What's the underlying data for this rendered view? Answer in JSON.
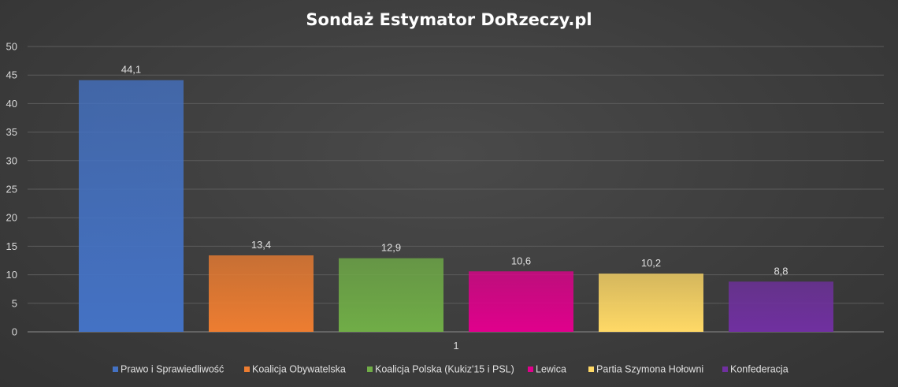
{
  "chart_data": {
    "type": "bar",
    "title": "Sondaż Estymator DoRzeczy.pl",
    "xlabel": "",
    "ylabel": "",
    "categories": [
      "1"
    ],
    "ylim": [
      0,
      50
    ],
    "yticks": [
      0,
      5,
      10,
      15,
      20,
      25,
      30,
      35,
      40,
      45,
      50
    ],
    "grid": true,
    "legend_position": "bottom",
    "series": [
      {
        "name": "Prawo i Sprawiedliwość",
        "values": [
          44.1
        ],
        "label": "44,1",
        "color": "#4472c4"
      },
      {
        "name": "Koalicja Obywatelska",
        "values": [
          13.4
        ],
        "label": "13,4",
        "color": "#ed7d31"
      },
      {
        "name": "Koalicja Polska (Kukiz'15 i PSL)",
        "values": [
          12.9
        ],
        "label": "12,9",
        "color": "#70ad47"
      },
      {
        "name": "Lewica",
        "values": [
          10.6
        ],
        "label": "10,6",
        "color": "#e0008c"
      },
      {
        "name": "Partia Szymona Hołowni",
        "values": [
          10.2
        ],
        "label": "10,2",
        "color": "#ffd966"
      },
      {
        "name": "Konfederacja",
        "values": [
          8.8
        ],
        "label": "8,8",
        "color": "#7030a0"
      }
    ]
  }
}
